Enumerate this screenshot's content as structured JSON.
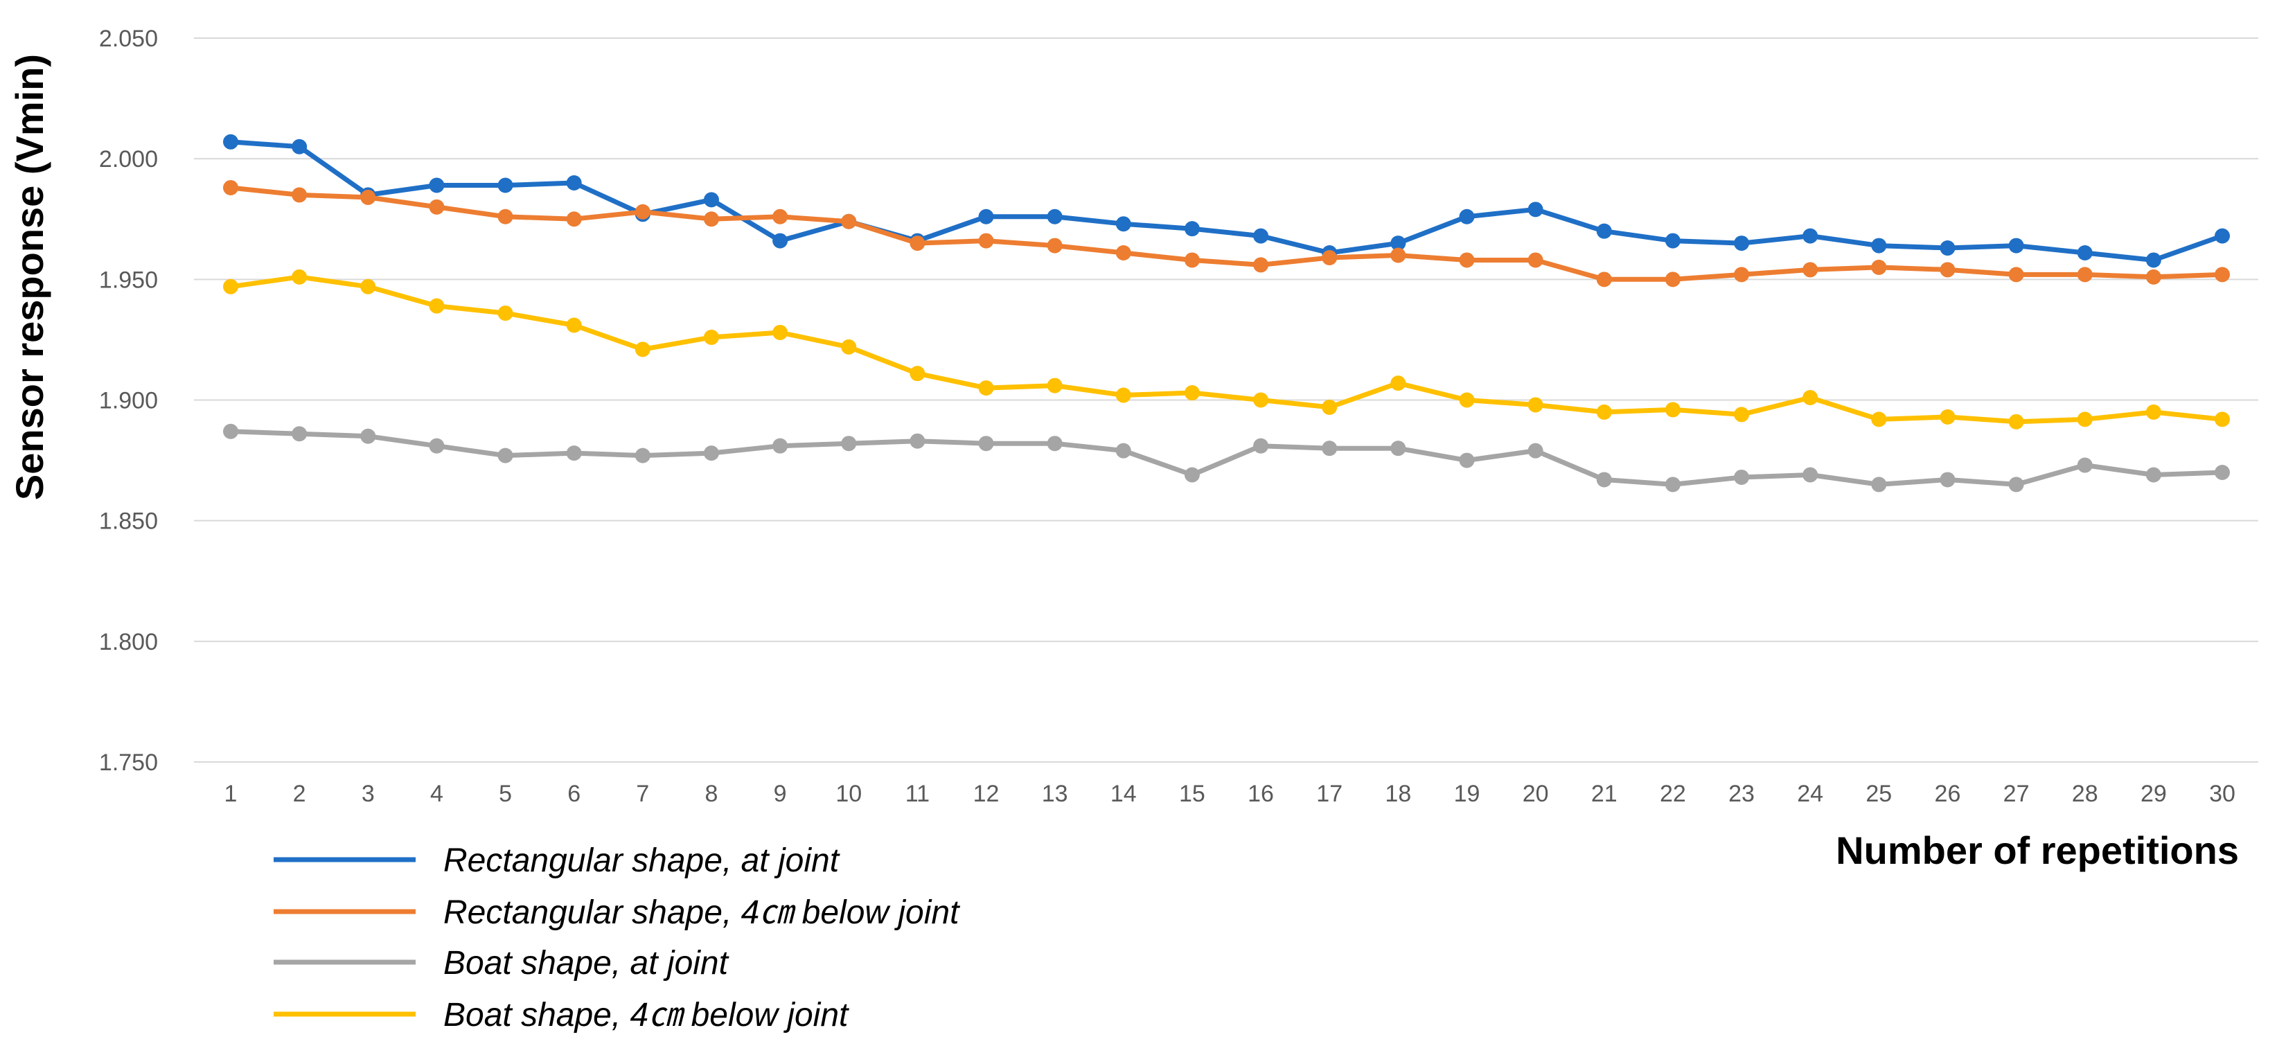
{
  "chart_data": {
    "type": "line",
    "title": "",
    "xlabel": "Number of repetitions",
    "ylabel": "Sensor response (Vmin)",
    "ylim": [
      1.75,
      2.05
    ],
    "yticks": [
      "1.750",
      "1.800",
      "1.850",
      "1.900",
      "1.950",
      "2.000",
      "2.050"
    ],
    "grid": true,
    "legend_position": "bottom-left",
    "categories": [
      "1",
      "2",
      "3",
      "4",
      "5",
      "6",
      "7",
      "8",
      "9",
      "10",
      "11",
      "12",
      "13",
      "14",
      "15",
      "16",
      "17",
      "18",
      "19",
      "20",
      "21",
      "22",
      "23",
      "24",
      "25",
      "26",
      "27",
      "28",
      "29",
      "30"
    ],
    "series": [
      {
        "name": "Rectangular shape, at joint",
        "color": "#1f6fc6",
        "values": [
          2.007,
          2.005,
          1.985,
          1.989,
          1.989,
          1.99,
          1.977,
          1.983,
          1.966,
          1.974,
          1.966,
          1.976,
          1.976,
          1.973,
          1.971,
          1.968,
          1.961,
          1.965,
          1.976,
          1.979,
          1.97,
          1.966,
          1.965,
          1.968,
          1.964,
          1.963,
          1.964,
          1.961,
          1.958,
          1.968
        ]
      },
      {
        "name": "Rectangular shape, 4㎝ below joint",
        "color": "#ed7d31",
        "values": [
          1.988,
          1.985,
          1.984,
          1.98,
          1.976,
          1.975,
          1.978,
          1.975,
          1.976,
          1.974,
          1.965,
          1.966,
          1.964,
          1.961,
          1.958,
          1.956,
          1.959,
          1.96,
          1.958,
          1.958,
          1.95,
          1.95,
          1.952,
          1.954,
          1.955,
          1.954,
          1.952,
          1.952,
          1.951,
          1.952
        ]
      },
      {
        "name": "Boat shape, at joint",
        "color": "#a5a5a5",
        "values": [
          1.887,
          1.886,
          1.885,
          1.881,
          1.877,
          1.878,
          1.877,
          1.878,
          1.881,
          1.882,
          1.883,
          1.882,
          1.882,
          1.879,
          1.869,
          1.881,
          1.88,
          1.88,
          1.875,
          1.879,
          1.867,
          1.865,
          1.868,
          1.869,
          1.865,
          1.867,
          1.865,
          1.873,
          1.869,
          1.87
        ]
      },
      {
        "name": "Boat shape, 4㎝ below joint",
        "color": "#ffc000",
        "values": [
          1.947,
          1.951,
          1.947,
          1.939,
          1.936,
          1.931,
          1.921,
          1.926,
          1.928,
          1.922,
          1.911,
          1.905,
          1.906,
          1.902,
          1.903,
          1.9,
          1.897,
          1.907,
          1.9,
          1.898,
          1.895,
          1.896,
          1.894,
          1.901,
          1.892,
          1.893,
          1.891,
          1.892,
          1.895,
          1.892
        ]
      }
    ]
  }
}
